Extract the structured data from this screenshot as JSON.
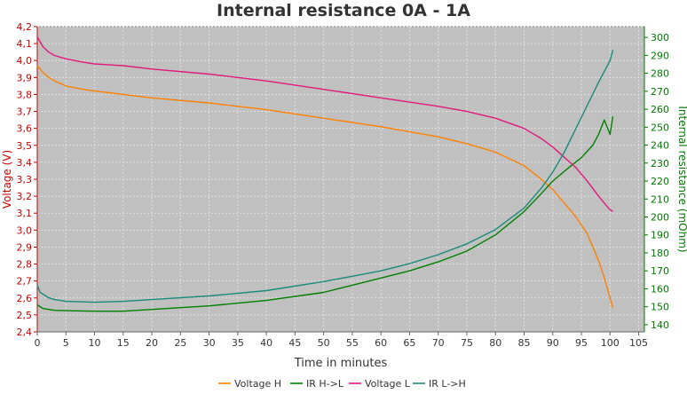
{
  "chart_data": {
    "type": "line",
    "title": "Internal resistance  0A - 1A",
    "xlabel": "Time in minutes",
    "ylabel": "Voltage (V)",
    "y2label": "Internal resistance (mOhm)",
    "xlim": [
      0,
      106
    ],
    "ylim": [
      2.4,
      4.2
    ],
    "y2lim": [
      136,
      306
    ],
    "x_ticks": [
      "0",
      "5",
      "10",
      "15",
      "20",
      "25",
      "30",
      "35",
      "40",
      "45",
      "50",
      "55",
      "60",
      "65",
      "70",
      "75",
      "80",
      "85",
      "90",
      "95",
      "100",
      "105"
    ],
    "y_ticks": [
      "2,4",
      "2,5",
      "2,6",
      "2,7",
      "2,8",
      "2,9",
      "3,0",
      "3,1",
      "3,2",
      "3,3",
      "3,4",
      "3,5",
      "3,6",
      "3,7",
      "3,8",
      "3,9",
      "4,0",
      "4,1",
      "4,2"
    ],
    "y2_ticks": [
      "140",
      "150",
      "160",
      "170",
      "180",
      "190",
      "200",
      "210",
      "220",
      "230",
      "240",
      "250",
      "260",
      "270",
      "280",
      "290",
      "300"
    ],
    "grid": true,
    "legend_position": "bottom",
    "colors": {
      "plot_background": "#c0c0c0",
      "grid": "#e0e0e0",
      "left_axis": "#cc0000",
      "right_axis": "#007700"
    },
    "series": [
      {
        "name": "Voltage H",
        "axis": "left",
        "color": "#ff8000",
        "x": [
          0,
          1,
          2,
          3,
          5,
          8,
          10,
          15,
          20,
          30,
          40,
          50,
          60,
          70,
          75,
          80,
          85,
          88,
          90,
          92,
          94,
          96,
          98,
          99,
          100,
          100.5
        ],
        "y": [
          3.97,
          3.93,
          3.9,
          3.88,
          3.85,
          3.83,
          3.82,
          3.8,
          3.78,
          3.75,
          3.71,
          3.66,
          3.61,
          3.55,
          3.51,
          3.46,
          3.38,
          3.3,
          3.24,
          3.16,
          3.08,
          2.98,
          2.82,
          2.72,
          2.6,
          2.54
        ]
      },
      {
        "name": "IR H->L",
        "axis": "right",
        "color": "#008000",
        "x": [
          0,
          1,
          2,
          3,
          5,
          10,
          15,
          20,
          30,
          40,
          50,
          55,
          60,
          65,
          70,
          75,
          80,
          85,
          88,
          90,
          93,
          95,
          97,
          98,
          99,
          100,
          100.5
        ],
        "y": [
          151,
          149,
          148.5,
          148,
          147.8,
          147.5,
          147.5,
          148.5,
          150.5,
          153.5,
          158,
          162,
          166,
          170,
          175,
          181,
          190,
          203,
          213,
          220,
          228,
          233,
          240,
          246,
          254,
          246,
          256
        ]
      },
      {
        "name": "Voltage L",
        "axis": "left",
        "color": "#e0197a",
        "x": [
          0,
          1,
          2,
          3,
          5,
          8,
          10,
          15,
          20,
          30,
          40,
          50,
          60,
          70,
          75,
          80,
          85,
          88,
          90,
          92,
          94,
          96,
          98,
          99,
          100,
          100.5
        ],
        "y": [
          4.14,
          4.08,
          4.05,
          4.03,
          4.01,
          3.99,
          3.98,
          3.97,
          3.95,
          3.92,
          3.88,
          3.83,
          3.78,
          3.73,
          3.7,
          3.66,
          3.6,
          3.54,
          3.49,
          3.43,
          3.37,
          3.29,
          3.2,
          3.16,
          3.12,
          3.11
        ]
      },
      {
        "name": "IR L->H",
        "axis": "right",
        "color": "#1a8a7a",
        "x": [
          0,
          0.5,
          1,
          2,
          3,
          5,
          10,
          15,
          20,
          30,
          40,
          50,
          55,
          60,
          65,
          70,
          75,
          80,
          85,
          88,
          90,
          92,
          94,
          96,
          98,
          99,
          100,
          100.5
        ],
        "y": [
          162,
          158,
          157,
          155,
          154,
          153,
          152.5,
          153,
          154,
          156,
          159,
          164,
          167,
          170,
          174,
          179,
          185,
          193,
          205,
          216,
          225,
          236,
          249,
          262,
          275,
          281,
          287,
          293
        ]
      }
    ]
  }
}
